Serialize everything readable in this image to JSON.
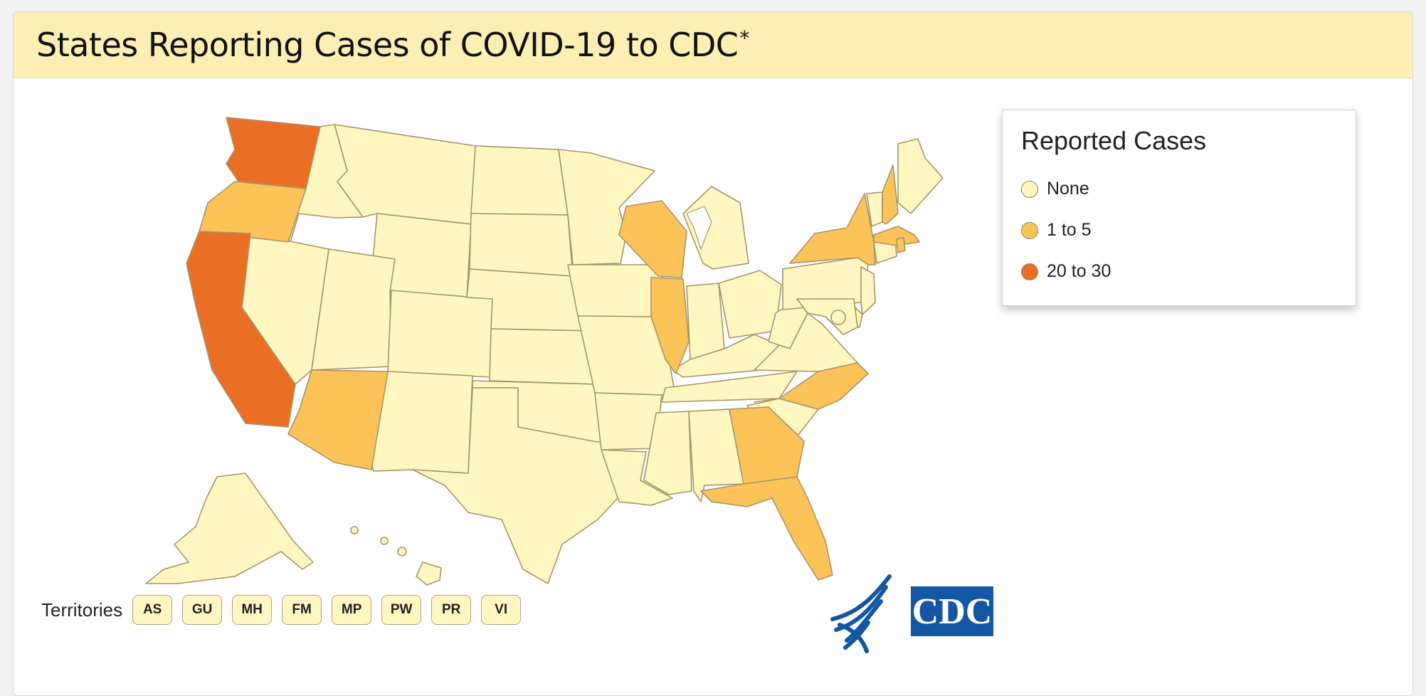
{
  "header": {
    "title": "States Reporting Cases of COVID-19 to CDC",
    "superscript": "*"
  },
  "legend": {
    "title": "Reported Cases",
    "items": [
      {
        "label": "None",
        "color": "#fff7bf"
      },
      {
        "label": "1 to 5",
        "color": "#fcc358"
      },
      {
        "label": "20 to 30",
        "color": "#ea6f24"
      }
    ]
  },
  "map": {
    "states_reporting": {
      "20 to 30": [
        "Washington",
        "California"
      ],
      "1 to 5": [
        "Oregon",
        "Arizona",
        "Wisconsin",
        "Illinois",
        "New York",
        "New Hampshire",
        "Massachusetts",
        "Rhode Island",
        "North Carolina",
        "Georgia",
        "Florida"
      ]
    },
    "other_states_category": "None",
    "dc_marker": "None"
  },
  "territories": {
    "label": "Territories",
    "codes": [
      "AS",
      "GU",
      "MH",
      "FM",
      "MP",
      "PW",
      "PR",
      "VI"
    ]
  },
  "logos": {
    "hhs_icon": "hhs-eagle-icon",
    "cdc_text": "CDC",
    "cdc_color": "#1356a3"
  }
}
